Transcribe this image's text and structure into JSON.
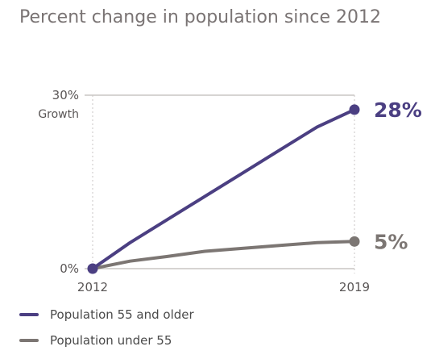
{
  "chart_data": {
    "type": "line",
    "title": "Percent change in population since 2012",
    "xlabel": "",
    "ylabel": "Growth",
    "x": [
      2012,
      2013,
      2014,
      2015,
      2016,
      2017,
      2018,
      2019
    ],
    "x_tick_labels": [
      "2012",
      "2019"
    ],
    "y_tick_labels": [
      "0%",
      "30%"
    ],
    "ylim": [
      0,
      30
    ],
    "grid": "dotted vertical at endpoints, solid horizontal at ticks",
    "series": [
      {
        "name": "Population 55 and older",
        "color": "#4b3f82",
        "values": [
          0,
          4.5,
          8.5,
          12.5,
          16.5,
          20.5,
          24.5,
          27.5
        ],
        "end_label": "28%"
      },
      {
        "name": "Population under 55",
        "color": "#7c7673",
        "values": [
          0,
          1.3,
          2.1,
          3.0,
          3.5,
          4.0,
          4.5,
          4.7
        ],
        "end_label": "5%"
      }
    ],
    "legend_position": "bottom-left"
  }
}
